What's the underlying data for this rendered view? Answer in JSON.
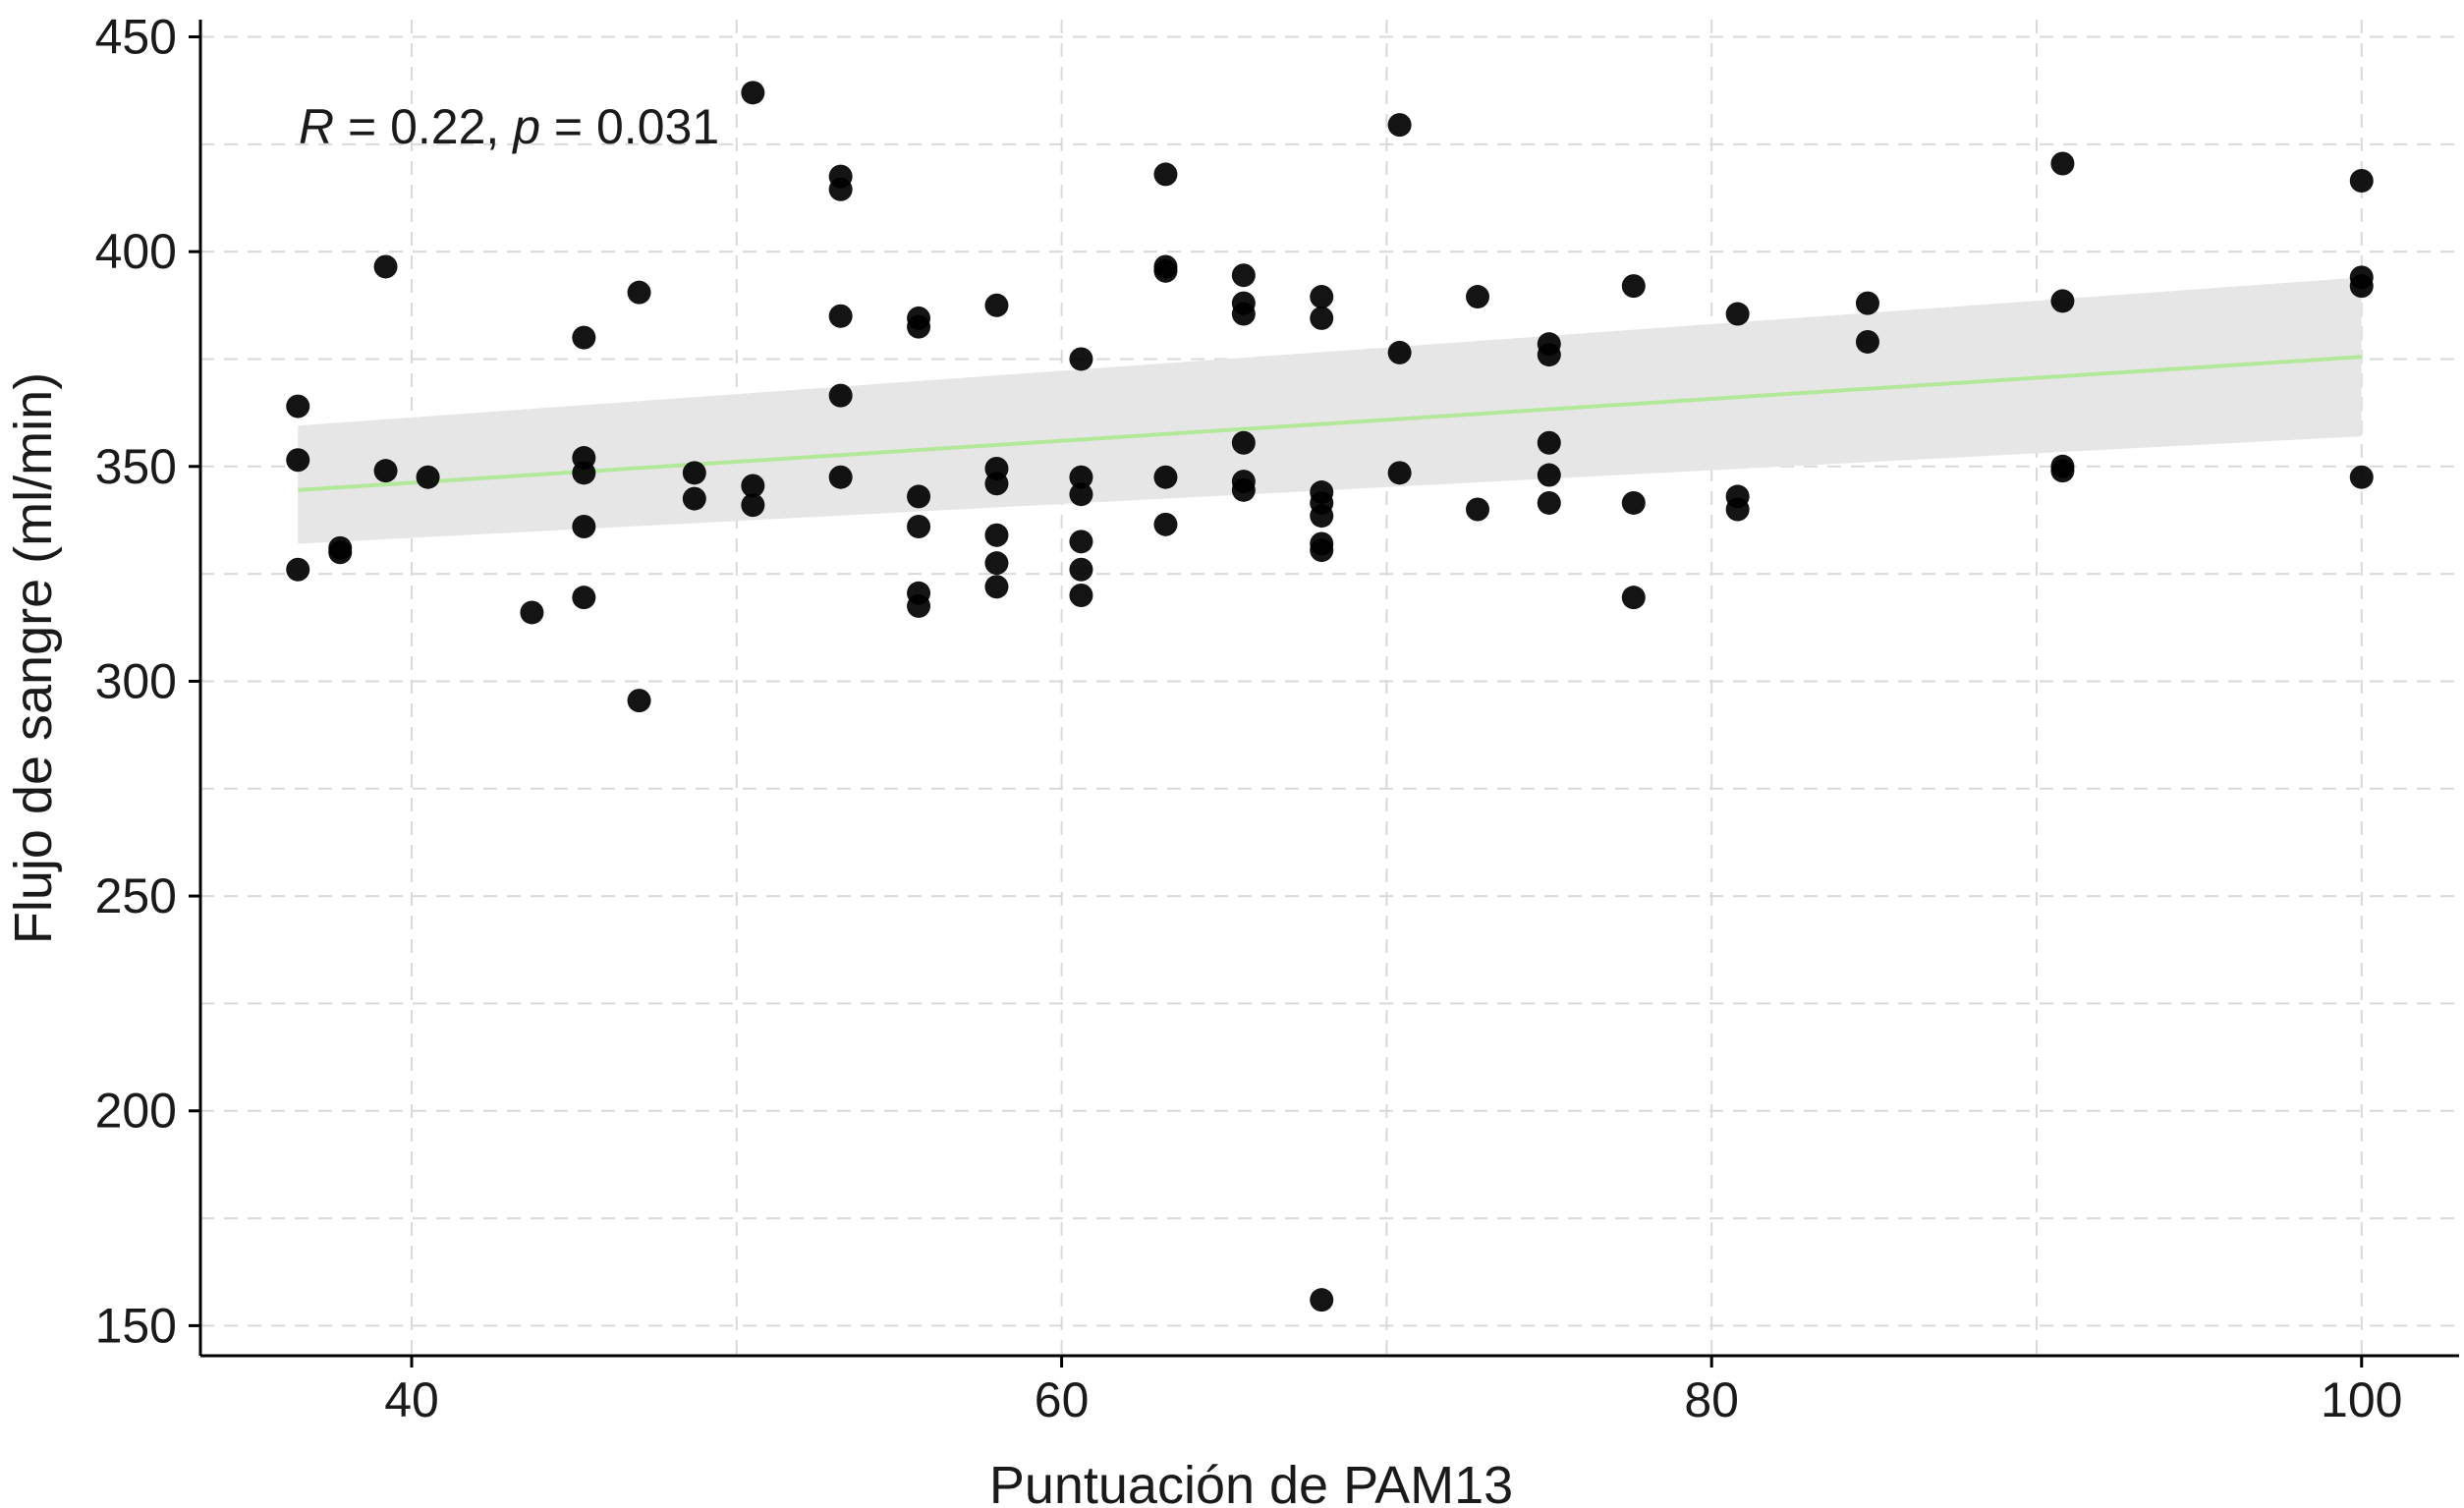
{
  "chart_data": {
    "type": "scatter",
    "xlabel": "Puntuación de PAM13",
    "ylabel": "Flujo de sangre (ml/min)",
    "xlim": [
      33.5,
      103
    ],
    "ylim": [
      143,
      454
    ],
    "x_ticks": [
      40,
      60,
      80,
      100
    ],
    "y_ticks": [
      150,
      200,
      250,
      300,
      350,
      400,
      450
    ],
    "x_tick_labels": [
      "40",
      "60",
      "80",
      "100"
    ],
    "y_tick_labels": [
      "150",
      "200",
      "250",
      "300",
      "350",
      "400",
      "450"
    ],
    "grid": true,
    "annotation": {
      "r_symbol": "R",
      "r_text": " = 0.22, ",
      "p_symbol": "p",
      "p_text": " = 0.031"
    },
    "colors": {
      "points": "#000000",
      "fit_line": "#b3e89b",
      "confidence_band": "#e6e6e6"
    },
    "fit": {
      "x": [
        36.5,
        100
      ],
      "y": [
        344.5,
        375.5
      ],
      "ci_lower": [
        332,
        357
      ],
      "ci_upper": [
        359.5,
        394
      ]
    },
    "points": [
      {
        "x": 36.5,
        "y": 364
      },
      {
        "x": 36.5,
        "y": 351.5
      },
      {
        "x": 36.5,
        "y": 326
      },
      {
        "x": 37.8,
        "y": 331
      },
      {
        "x": 37.8,
        "y": 330
      },
      {
        "x": 39.2,
        "y": 396.5
      },
      {
        "x": 39.2,
        "y": 349
      },
      {
        "x": 40.5,
        "y": 347.5
      },
      {
        "x": 43.7,
        "y": 316
      },
      {
        "x": 45.3,
        "y": 380
      },
      {
        "x": 45.3,
        "y": 352
      },
      {
        "x": 45.3,
        "y": 348.5
      },
      {
        "x": 45.3,
        "y": 336
      },
      {
        "x": 45.3,
        "y": 319.5
      },
      {
        "x": 47.0,
        "y": 390.5
      },
      {
        "x": 47.0,
        "y": 295.5
      },
      {
        "x": 48.7,
        "y": 348.5
      },
      {
        "x": 48.7,
        "y": 342.5
      },
      {
        "x": 50.5,
        "y": 437
      },
      {
        "x": 50.5,
        "y": 345.5
      },
      {
        "x": 50.5,
        "y": 341
      },
      {
        "x": 53.2,
        "y": 417.5
      },
      {
        "x": 53.2,
        "y": 414.5
      },
      {
        "x": 53.2,
        "y": 385
      },
      {
        "x": 53.2,
        "y": 366.5
      },
      {
        "x": 53.2,
        "y": 347.5
      },
      {
        "x": 55.6,
        "y": 384.5
      },
      {
        "x": 55.6,
        "y": 382.5
      },
      {
        "x": 55.6,
        "y": 343
      },
      {
        "x": 55.6,
        "y": 336
      },
      {
        "x": 55.6,
        "y": 320.5
      },
      {
        "x": 55.6,
        "y": 317.5
      },
      {
        "x": 58.0,
        "y": 387.5
      },
      {
        "x": 58.0,
        "y": 349.5
      },
      {
        "x": 58.0,
        "y": 346
      },
      {
        "x": 58.0,
        "y": 334
      },
      {
        "x": 58.0,
        "y": 327.5
      },
      {
        "x": 58.0,
        "y": 322
      },
      {
        "x": 60.6,
        "y": 375
      },
      {
        "x": 60.6,
        "y": 347.5
      },
      {
        "x": 60.6,
        "y": 343.5
      },
      {
        "x": 60.6,
        "y": 332.5
      },
      {
        "x": 60.6,
        "y": 326
      },
      {
        "x": 60.6,
        "y": 320
      },
      {
        "x": 63.2,
        "y": 418
      },
      {
        "x": 63.2,
        "y": 396.5
      },
      {
        "x": 63.2,
        "y": 395.5
      },
      {
        "x": 63.2,
        "y": 347.5
      },
      {
        "x": 63.2,
        "y": 336.5
      },
      {
        "x": 65.6,
        "y": 394.5
      },
      {
        "x": 65.6,
        "y": 388
      },
      {
        "x": 65.6,
        "y": 385.5
      },
      {
        "x": 65.6,
        "y": 355.5
      },
      {
        "x": 65.6,
        "y": 346.5
      },
      {
        "x": 65.6,
        "y": 344.5
      },
      {
        "x": 68.0,
        "y": 389.5
      },
      {
        "x": 68.0,
        "y": 384.5
      },
      {
        "x": 68.0,
        "y": 344
      },
      {
        "x": 68.0,
        "y": 341.5
      },
      {
        "x": 68.0,
        "y": 338.5
      },
      {
        "x": 68.0,
        "y": 332
      },
      {
        "x": 68.0,
        "y": 330.5
      },
      {
        "x": 68.0,
        "y": 156
      },
      {
        "x": 70.4,
        "y": 429.5
      },
      {
        "x": 70.4,
        "y": 376.5
      },
      {
        "x": 70.4,
        "y": 348.5
      },
      {
        "x": 72.8,
        "y": 389.5
      },
      {
        "x": 72.8,
        "y": 340
      },
      {
        "x": 75.0,
        "y": 378.5
      },
      {
        "x": 75.0,
        "y": 376
      },
      {
        "x": 75.0,
        "y": 355.5
      },
      {
        "x": 75.0,
        "y": 348
      },
      {
        "x": 75.0,
        "y": 341.5
      },
      {
        "x": 77.6,
        "y": 392
      },
      {
        "x": 77.6,
        "y": 341.5
      },
      {
        "x": 77.6,
        "y": 319.5
      },
      {
        "x": 80.8,
        "y": 385.5
      },
      {
        "x": 80.8,
        "y": 343
      },
      {
        "x": 80.8,
        "y": 340
      },
      {
        "x": 84.8,
        "y": 388
      },
      {
        "x": 84.8,
        "y": 379
      },
      {
        "x": 90.8,
        "y": 420.5
      },
      {
        "x": 90.8,
        "y": 388.5
      },
      {
        "x": 90.8,
        "y": 350
      },
      {
        "x": 90.8,
        "y": 349
      },
      {
        "x": 100.0,
        "y": 416.5
      },
      {
        "x": 100.0,
        "y": 394
      },
      {
        "x": 100.0,
        "y": 392
      },
      {
        "x": 100.0,
        "y": 347.5
      }
    ]
  }
}
